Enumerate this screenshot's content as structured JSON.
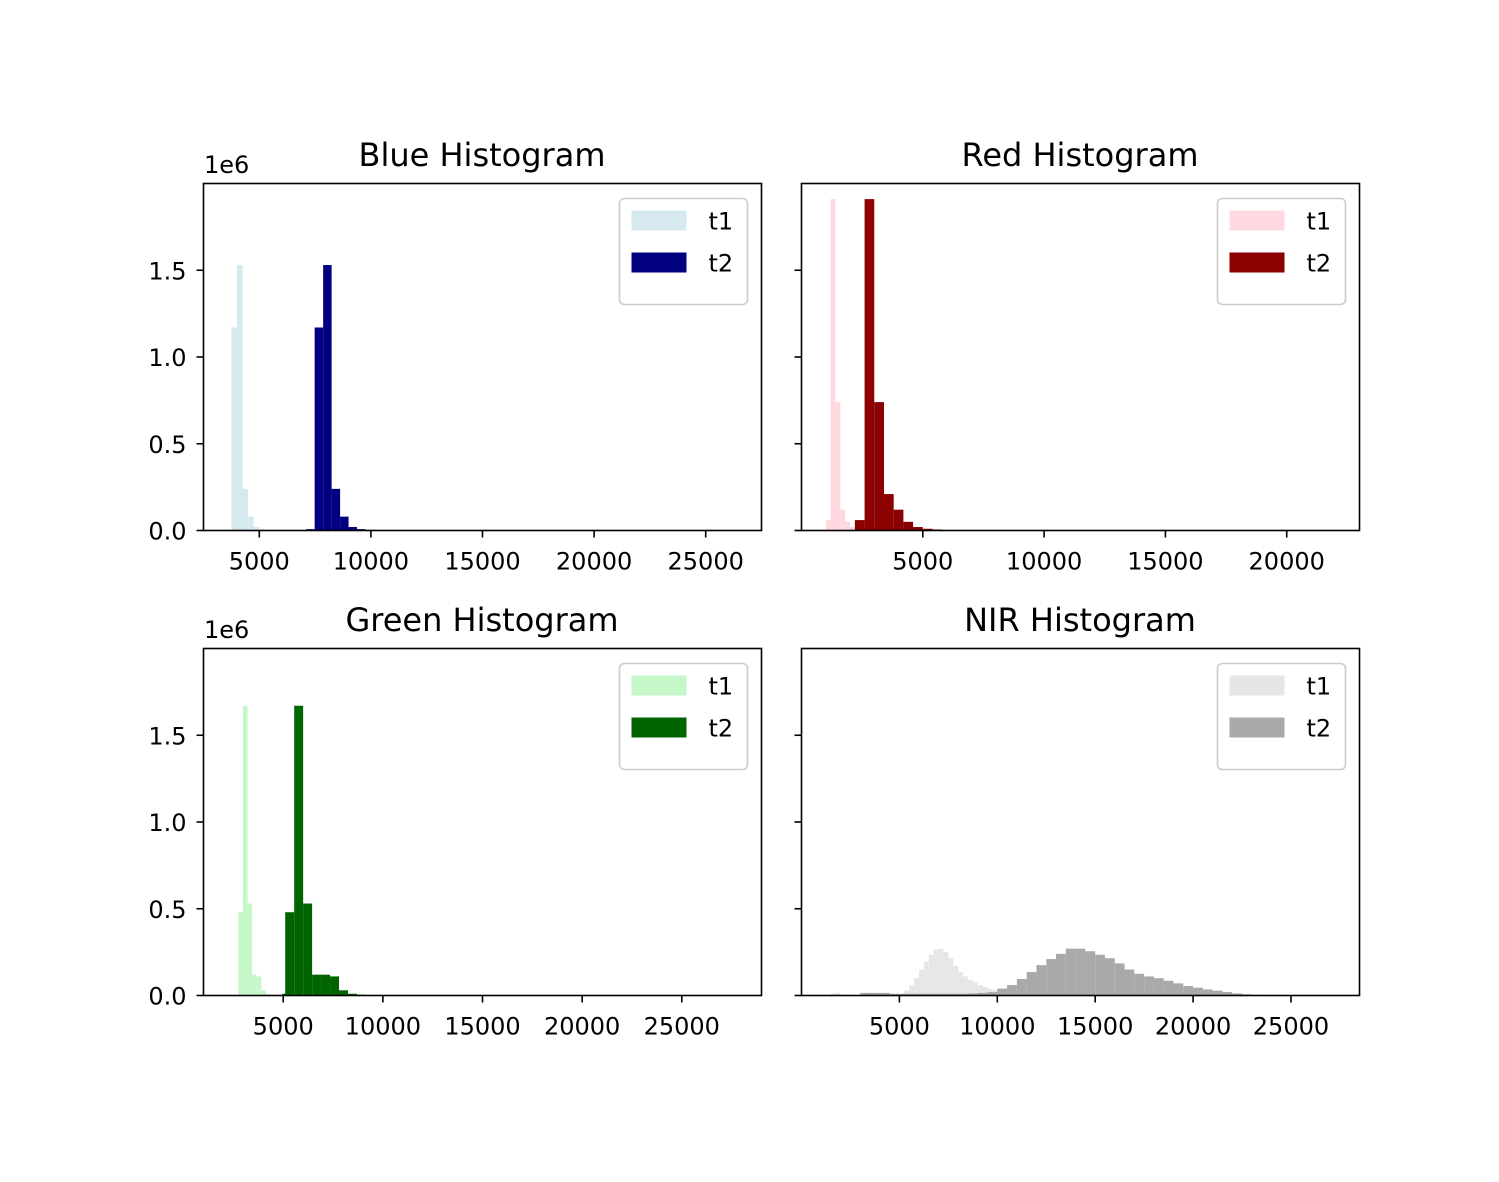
{
  "figure": {
    "background": "#ffffff"
  },
  "chart_data": [
    {
      "type": "bar",
      "title": "Blue Histogram",
      "offset_text": "1e6",
      "xlim": [
        2500,
        27500
      ],
      "ylim": [
        0,
        2000000
      ],
      "xticks": [
        5000,
        10000,
        15000,
        20000,
        25000
      ],
      "xtick_labels": [
        "5000",
        "10000",
        "15000",
        "20000",
        "25000"
      ],
      "yticks": [
        0,
        500000,
        1000000,
        1500000
      ],
      "ytick_labels": [
        "0.0",
        "0.5",
        "1.0",
        "1.5"
      ],
      "show_ytick_labels": true,
      "legend": "top-right",
      "series": [
        {
          "name": "t1",
          "color": "#d5e9ef",
          "bin_width": 250,
          "bins": [
            [
              3750,
              1170000
            ],
            [
              4000,
              1530000
            ],
            [
              4250,
              240000
            ],
            [
              4500,
              80000
            ],
            [
              4750,
              20000
            ],
            [
              5000,
              8000
            ]
          ]
        },
        {
          "name": "t2",
          "color": "#000080",
          "bin_width": 380,
          "bins": [
            [
              7100,
              8000
            ],
            [
              7480,
              1170000
            ],
            [
              7860,
              1530000
            ],
            [
              8240,
              240000
            ],
            [
              8620,
              80000
            ],
            [
              9000,
              20000
            ],
            [
              9380,
              8000
            ],
            [
              9760,
              4000
            ]
          ]
        }
      ]
    },
    {
      "type": "bar",
      "title": "Red Histogram",
      "offset_text": "",
      "xlim": [
        0,
        23000
      ],
      "ylim": [
        0,
        2000000
      ],
      "xticks": [
        5000,
        10000,
        15000,
        20000
      ],
      "xtick_labels": [
        "5000",
        "10000",
        "15000",
        "20000"
      ],
      "yticks": [
        0,
        500000,
        1000000,
        1500000
      ],
      "ytick_labels": [
        "",
        "",
        "",
        ""
      ],
      "show_ytick_labels": false,
      "legend": "top-right",
      "series": [
        {
          "name": "t1",
          "color": "#ffd9df",
          "bin_width": 200,
          "bins": [
            [
              1000,
              60000
            ],
            [
              1200,
              1910000
            ],
            [
              1400,
              740000
            ],
            [
              1600,
              120000
            ],
            [
              1800,
              50000
            ],
            [
              2000,
              20000
            ]
          ]
        },
        {
          "name": "t2",
          "color": "#8b0000",
          "bin_width": 400,
          "bins": [
            [
              2200,
              60000
            ],
            [
              2600,
              1910000
            ],
            [
              3000,
              740000
            ],
            [
              3400,
              210000
            ],
            [
              3800,
              120000
            ],
            [
              4200,
              50000
            ],
            [
              4600,
              20000
            ],
            [
              5000,
              10000
            ],
            [
              5400,
              6000
            ]
          ]
        }
      ]
    },
    {
      "type": "bar",
      "title": "Green Histogram",
      "offset_text": "1e6",
      "xlim": [
        1000,
        29000
      ],
      "ylim": [
        0,
        2000000
      ],
      "xticks": [
        5000,
        10000,
        15000,
        20000,
        25000
      ],
      "xtick_labels": [
        "5000",
        "10000",
        "15000",
        "20000",
        "25000"
      ],
      "yticks": [
        0,
        500000,
        1000000,
        1500000
      ],
      "ytick_labels": [
        "0.0",
        "0.5",
        "1.0",
        "1.5"
      ],
      "show_ytick_labels": true,
      "legend": "top-right",
      "series": [
        {
          "name": "t1",
          "color": "#c6f7c9",
          "bin_width": 230,
          "bins": [
            [
              2750,
              480000
            ],
            [
              2980,
              1670000
            ],
            [
              3210,
              530000
            ],
            [
              3440,
              120000
            ],
            [
              3670,
              110000
            ],
            [
              3900,
              30000
            ],
            [
              4130,
              10000
            ]
          ]
        },
        {
          "name": "t2",
          "color": "#006400",
          "bin_width": 450,
          "bins": [
            [
              4950,
              10000
            ],
            [
              5100,
              480000
            ],
            [
              5550,
              1670000
            ],
            [
              6000,
              530000
            ],
            [
              6450,
              120000
            ],
            [
              6900,
              120000
            ],
            [
              7350,
              110000
            ],
            [
              7800,
              30000
            ],
            [
              8250,
              10000
            ],
            [
              8700,
              5000
            ]
          ]
        }
      ]
    },
    {
      "type": "bar",
      "title": "NIR Histogram",
      "offset_text": "",
      "xlim": [
        0,
        28500
      ],
      "ylim": [
        0,
        2000000
      ],
      "xticks": [
        5000,
        10000,
        15000,
        20000,
        25000
      ],
      "xtick_labels": [
        "5000",
        "10000",
        "15000",
        "20000",
        "25000"
      ],
      "yticks": [
        0,
        500000,
        1000000,
        1500000
      ],
      "ytick_labels": [
        "",
        "",
        "",
        ""
      ],
      "show_ytick_labels": false,
      "legend": "top-right",
      "series": [
        {
          "name": "t1",
          "color": "#e6e6e6",
          "bin_width": 250,
          "bins": [
            [
              1500,
              12000
            ],
            [
              1750,
              15000
            ],
            [
              3000,
              15000
            ],
            [
              3250,
              15000
            ],
            [
              3500,
              15000
            ],
            [
              5000,
              10000
            ],
            [
              5250,
              30000
            ],
            [
              5500,
              60000
            ],
            [
              5750,
              100000
            ],
            [
              6000,
              150000
            ],
            [
              6250,
              195000
            ],
            [
              6500,
              235000
            ],
            [
              6750,
              265000
            ],
            [
              7000,
              270000
            ],
            [
              7250,
              250000
            ],
            [
              7500,
              215000
            ],
            [
              7750,
              170000
            ],
            [
              8000,
              135000
            ],
            [
              8250,
              110000
            ],
            [
              8500,
              90000
            ],
            [
              8750,
              75000
            ],
            [
              9000,
              60000
            ],
            [
              9250,
              50000
            ],
            [
              9500,
              40000
            ],
            [
              9750,
              32000
            ],
            [
              10000,
              25000
            ],
            [
              10250,
              20000
            ],
            [
              10500,
              15000
            ],
            [
              10750,
              12000
            ],
            [
              11000,
              9000
            ],
            [
              11250,
              7000
            ],
            [
              11500,
              5000
            ],
            [
              11750,
              4000
            ],
            [
              12000,
              3000
            ]
          ]
        },
        {
          "name": "t2",
          "color": "#a9a9a9",
          "bin_width": 500,
          "bins": [
            [
              3000,
              15000
            ],
            [
              3500,
              15000
            ],
            [
              4000,
              15000
            ],
            [
              4500,
              10000
            ],
            [
              5000,
              10000
            ],
            [
              5500,
              10000
            ],
            [
              6000,
              10000
            ],
            [
              6500,
              10000
            ],
            [
              7000,
              10000
            ],
            [
              7500,
              10000
            ],
            [
              8000,
              10000
            ],
            [
              8500,
              12000
            ],
            [
              9000,
              15000
            ],
            [
              9500,
              20000
            ],
            [
              10000,
              40000
            ],
            [
              10500,
              60000
            ],
            [
              11000,
              95000
            ],
            [
              11500,
              135000
            ],
            [
              12000,
              175000
            ],
            [
              12500,
              210000
            ],
            [
              13000,
              240000
            ],
            [
              13500,
              270000
            ],
            [
              14000,
              270000
            ],
            [
              14500,
              255000
            ],
            [
              15000,
              235000
            ],
            [
              15500,
              215000
            ],
            [
              16000,
              185000
            ],
            [
              16500,
              150000
            ],
            [
              17000,
              125000
            ],
            [
              17500,
              110000
            ],
            [
              18000,
              100000
            ],
            [
              18500,
              85000
            ],
            [
              19000,
              70000
            ],
            [
              19500,
              55000
            ],
            [
              20000,
              45000
            ],
            [
              20500,
              35000
            ],
            [
              21000,
              28000
            ],
            [
              21500,
              20000
            ],
            [
              22000,
              12000
            ],
            [
              22500,
              7000
            ],
            [
              23000,
              4000
            ],
            [
              23500,
              3000
            ],
            [
              24000,
              2000
            ]
          ]
        }
      ]
    }
  ]
}
